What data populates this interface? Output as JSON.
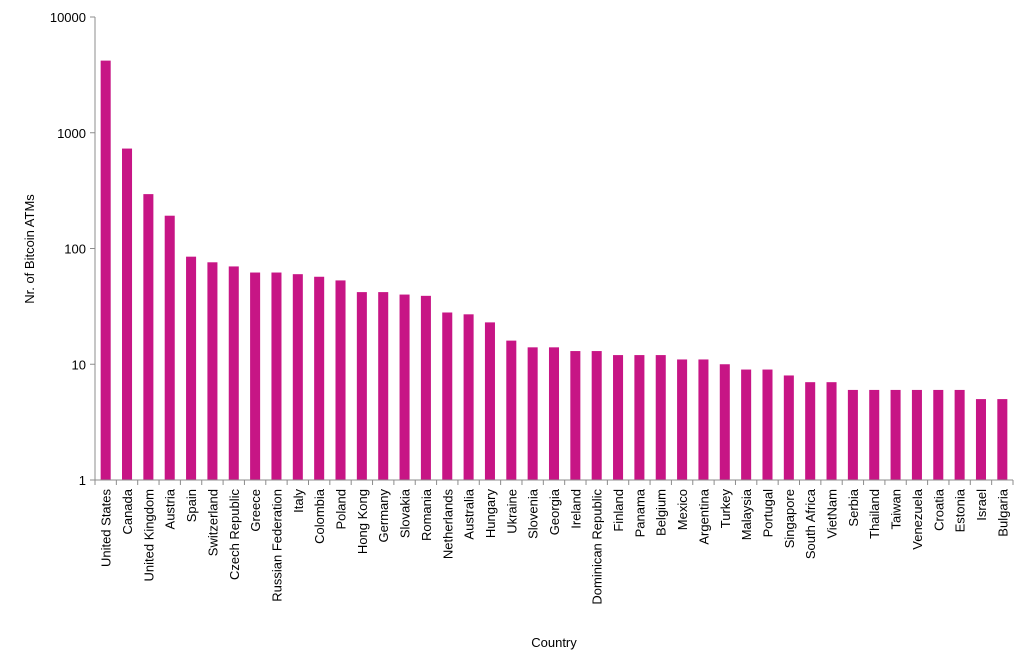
{
  "chart_data": {
    "type": "bar",
    "title": "",
    "xlabel": "Country",
    "ylabel": "Nr. of Bitcoin ATMs",
    "yscale": "log",
    "ylim": [
      1,
      10000
    ],
    "yticks": [
      "1",
      "10",
      "100",
      "1000",
      "10000"
    ],
    "grid": false,
    "legend": "none",
    "bar_color": "#c71585",
    "categories": [
      "United States",
      "Canada",
      "United Kingdom",
      "Austria",
      "Spain",
      "Switzerland",
      "Czech Republic",
      "Greece",
      "Russian Federation",
      "Italy",
      "Colombia",
      "Poland",
      "Hong Kong",
      "Germany",
      "Slovakia",
      "Romania",
      "Netherlands",
      "Australia",
      "Hungary",
      "Ukraine",
      "Slovenia",
      "Georgia",
      "Ireland",
      "Dominican Republic",
      "Finland",
      "Panama",
      "Belgium",
      "Mexico",
      "Argentina",
      "Turkey",
      "Malaysia",
      "Portugal",
      "Singapore",
      "South Africa",
      "VietNam",
      "Serbia",
      "Thailand",
      "Taiwan",
      "Venezuela",
      "Croatia",
      "Estonia",
      "Israel",
      "Bulgaria"
    ],
    "values": [
      4200,
      730,
      295,
      192,
      85,
      76,
      70,
      62,
      62,
      60,
      57,
      53,
      42,
      42,
      40,
      39,
      28,
      27,
      23,
      16,
      14,
      14,
      13,
      13,
      12,
      12,
      12,
      11,
      11,
      10,
      9,
      9,
      8,
      7,
      7,
      6,
      6,
      6,
      6,
      6,
      6,
      5,
      5
    ]
  }
}
